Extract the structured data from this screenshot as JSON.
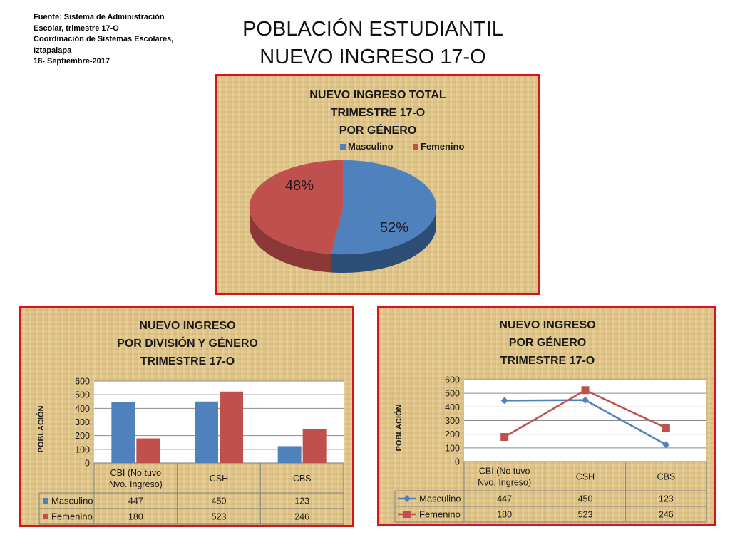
{
  "source": {
    "lines": [
      "Fuente: Sistema de Administración",
      "Escolar, trimestre 17-O",
      "Coordinación de Sistemas Escolares,",
      "Iztapalapa",
      "18- Septiembre-2017"
    ]
  },
  "title": {
    "line1": "POBLACIÓN ESTUDIANTIL",
    "line2": "NUEVO INGRESO 17-O"
  },
  "colors": {
    "masculino": "#4f81bd",
    "femenino": "#c0504d",
    "border": "#d3161c",
    "panel_bg": "#e3c98e"
  },
  "chart_data": [
    {
      "type": "pie",
      "title_lines": [
        "NUEVO INGRESO TOTAL",
        "TRIMESTRE 17-O",
        "POR GÉNERO"
      ],
      "labels": [
        "Masculino",
        "Femenino"
      ],
      "values": [
        52,
        48
      ],
      "data_labels": [
        "52%",
        "48%"
      ],
      "legend": "top",
      "three_d": true
    },
    {
      "type": "bar",
      "title_lines": [
        "NUEVO INGRESO",
        "POR DIVISIÓN Y GÉNERO",
        "TRIMESTRE 17-O"
      ],
      "ylabel": "POBLACIÓN",
      "categories": [
        [
          "CBI (No tuvo",
          "Nvo. Ingreso)"
        ],
        [
          "CSH"
        ],
        [
          "CBS"
        ]
      ],
      "series": [
        {
          "name": "Masculino",
          "values": [
            447,
            450,
            123
          ],
          "labels": [
            "447",
            "450",
            "123"
          ]
        },
        {
          "name": "Femenino",
          "values": [
            180,
            523,
            246
          ],
          "labels": [
            "180",
            "523",
            "246"
          ]
        }
      ],
      "yticks": [
        "0",
        "100",
        "200",
        "300",
        "400",
        "500",
        "600"
      ],
      "ylim": [
        0,
        600
      ],
      "grid": true,
      "legend": "data table"
    },
    {
      "type": "line",
      "title_lines": [
        "NUEVO INGRESO",
        "POR GÉNERO",
        "TRIMESTRE 17-O"
      ],
      "ylabel": "POBLACIÓN",
      "categories": [
        [
          "CBI (No tuvo",
          "Nvo. Ingreso)"
        ],
        [
          "CSH"
        ],
        [
          "CBS"
        ]
      ],
      "series": [
        {
          "name": "Masculino",
          "marker": "diamond",
          "values": [
            447,
            450,
            123
          ],
          "labels": [
            "447",
            "450",
            "123"
          ]
        },
        {
          "name": "Femenino",
          "marker": "square",
          "values": [
            180,
            523,
            246
          ],
          "labels": [
            "180",
            "523",
            "246"
          ]
        }
      ],
      "yticks": [
        "0",
        "100",
        "200",
        "300",
        "400",
        "500",
        "600"
      ],
      "ylim": [
        0,
        600
      ],
      "grid": true,
      "legend": "data table"
    }
  ]
}
